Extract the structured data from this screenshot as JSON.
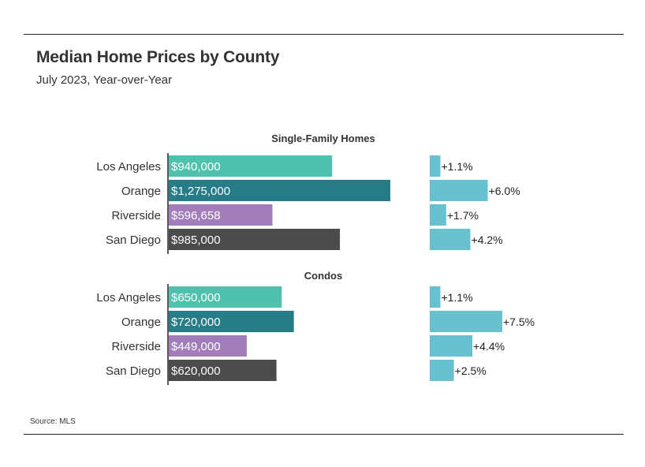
{
  "header": {
    "title": "Median Home Prices by County",
    "subtitle": "July 2023, Year-over-Year"
  },
  "footer": {
    "source": "Source: MLS"
  },
  "colors": {
    "Los Angeles": "#4fc1ad",
    "Orange": "#267d87",
    "Riverside": "#a27dba",
    "San Diego": "#4b4b4b",
    "change_bar": "#67c1cf"
  },
  "chart_data": {
    "type": "bar",
    "orientation": "horizontal",
    "title": "Median Home Prices by County",
    "subtitle": "July 2023, Year-over-Year",
    "categories": [
      "Los Angeles",
      "Orange",
      "Riverside",
      "San Diego"
    ],
    "value_axis_max": 1275000,
    "change_axis_max": 7.5,
    "groups": [
      {
        "name": "Single-Family Homes",
        "prices": [
          940000,
          1275000,
          596658,
          985000
        ],
        "price_labels": [
          "$940,000",
          "$1,275,000",
          "$596,658",
          "$985,000"
        ],
        "changes": [
          1.1,
          6.0,
          1.7,
          4.2
        ],
        "change_labels": [
          "+1.1%",
          "+6.0%",
          "+1.7%",
          "+4.2%"
        ]
      },
      {
        "name": "Condos",
        "prices": [
          650000,
          720000,
          449000,
          620000
        ],
        "price_labels": [
          "$650,000",
          "$720,000",
          "$449,000",
          "$620,000"
        ],
        "changes": [
          1.1,
          7.5,
          4.4,
          2.5
        ],
        "change_labels": [
          "+1.1%",
          "+7.5%",
          "+4.4%",
          "+2.5%"
        ]
      }
    ],
    "source": "Source: MLS"
  }
}
